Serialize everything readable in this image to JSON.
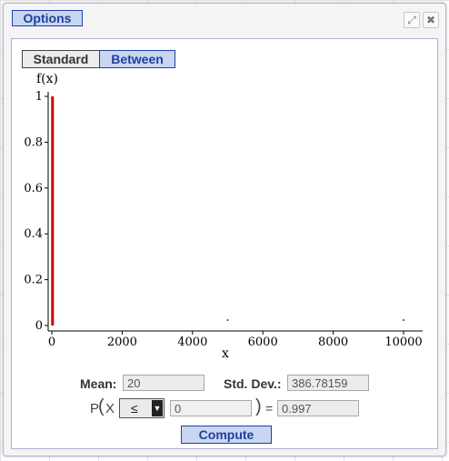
{
  "toolbar": {
    "options_label": "Options",
    "expand_icon": "expand-icon",
    "close_icon": "close-icon"
  },
  "tabs": [
    {
      "label": "Standard",
      "selected": false
    },
    {
      "label": "Between",
      "selected": true
    }
  ],
  "chart_data": {
    "type": "line",
    "ylabel": "f(x)",
    "xlabel": "x",
    "xlim": [
      0,
      10500
    ],
    "ylim": [
      0,
      1
    ],
    "xticks": [
      {
        "value": 0,
        "label": "0"
      },
      {
        "value": 2000,
        "label": "2000"
      },
      {
        "value": 4000,
        "label": "4000"
      },
      {
        "value": 6000,
        "label": "6000"
      },
      {
        "value": 8000,
        "label": "8000"
      },
      {
        "value": 10000,
        "label": "10000"
      }
    ],
    "yticks": [
      {
        "value": 0,
        "label": "0"
      },
      {
        "value": 0.2,
        "label": "0.2"
      },
      {
        "value": 0.4,
        "label": "0.4"
      },
      {
        "value": 0.6,
        "label": "0.6"
      },
      {
        "value": 0.8,
        "label": "0.8"
      },
      {
        "value": 1,
        "label": "1"
      }
    ],
    "series": [
      {
        "x": [
          20,
          20
        ],
        "y": [
          0,
          1
        ],
        "color": "#cc0000"
      }
    ],
    "points": [
      {
        "x": 5000,
        "y": 0
      },
      {
        "x": 10000,
        "y": 0
      }
    ]
  },
  "params": {
    "mean_label": "Mean:",
    "mean_value": "20",
    "sd_label": "Std. Dev.:",
    "sd_value": "386.78159"
  },
  "probability": {
    "prefix": "P",
    "open_paren": "(",
    "variable": "X",
    "operator": "≤",
    "bound_value": "0",
    "close_paren": ")",
    "equals": "=",
    "result": "0.997"
  },
  "compute_label": "Compute"
}
